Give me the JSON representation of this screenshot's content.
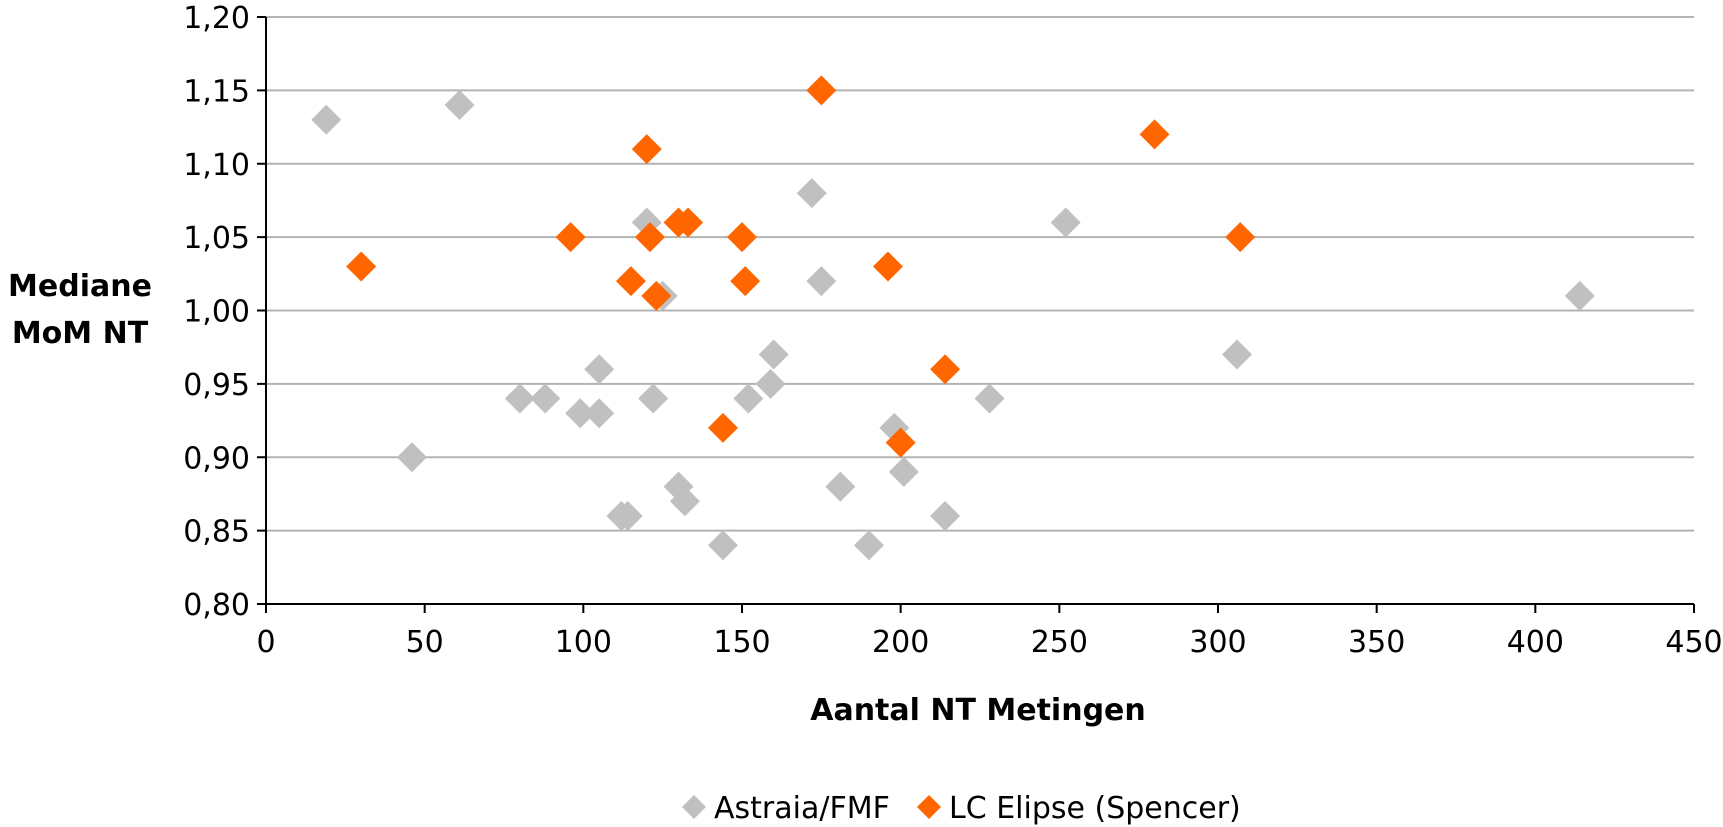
{
  "chart_data": {
    "type": "scatter",
    "xlabel": "Aantal NT Metingen",
    "ylabel_lines": [
      "Mediane",
      "MoM NT"
    ],
    "xlim": [
      0,
      450
    ],
    "ylim": [
      0.8,
      1.2
    ],
    "x_ticks": [
      0,
      50,
      100,
      150,
      200,
      250,
      300,
      350,
      400,
      450
    ],
    "x_tick_labels": [
      "0",
      "50",
      "100",
      "150",
      "200",
      "250",
      "300",
      "350",
      "400",
      "450"
    ],
    "y_ticks": [
      0.8,
      0.85,
      0.9,
      0.95,
      1.0,
      1.05,
      1.1,
      1.15,
      1.2
    ],
    "y_tick_labels": [
      "0,80",
      "0,85",
      "0,90",
      "0,95",
      "1,00",
      "1,05",
      "1,10",
      "1,15",
      "1,20"
    ],
    "grid": "horizontal",
    "legend_position": "bottom",
    "series": [
      {
        "name": "Astraia/FMF",
        "color": "#c0c0c0",
        "marker": "diamond",
        "points": [
          [
            19,
            1.13
          ],
          [
            46,
            0.9
          ],
          [
            61,
            1.14
          ],
          [
            80,
            0.94
          ],
          [
            88,
            0.94
          ],
          [
            99,
            0.93
          ],
          [
            105,
            0.96
          ],
          [
            105,
            0.93
          ],
          [
            112,
            0.86
          ],
          [
            114,
            0.86
          ],
          [
            120,
            1.06
          ],
          [
            121,
            1.05
          ],
          [
            122,
            0.94
          ],
          [
            125,
            1.01
          ],
          [
            130,
            0.88
          ],
          [
            132,
            0.87
          ],
          [
            144,
            0.84
          ],
          [
            152,
            0.94
          ],
          [
            159,
            0.95
          ],
          [
            160,
            0.97
          ],
          [
            172,
            1.08
          ],
          [
            175,
            1.02
          ],
          [
            181,
            0.88
          ],
          [
            190,
            0.84
          ],
          [
            198,
            0.92
          ],
          [
            201,
            0.89
          ],
          [
            214,
            0.86
          ],
          [
            228,
            0.94
          ],
          [
            252,
            1.06
          ],
          [
            306,
            0.97
          ],
          [
            414,
            1.01
          ]
        ]
      },
      {
        "name": "LC Elipse (Spencer)",
        "color": "#ff6600",
        "marker": "diamond",
        "points": [
          [
            30,
            1.03
          ],
          [
            96,
            1.05
          ],
          [
            115,
            1.02
          ],
          [
            120,
            1.11
          ],
          [
            121,
            1.05
          ],
          [
            123,
            1.01
          ],
          [
            130,
            1.06
          ],
          [
            133,
            1.06
          ],
          [
            144,
            0.92
          ],
          [
            150,
            1.05
          ],
          [
            151,
            1.02
          ],
          [
            175,
            1.15
          ],
          [
            196,
            1.03
          ],
          [
            200,
            0.91
          ],
          [
            214,
            0.96
          ],
          [
            280,
            1.12
          ],
          [
            307,
            1.05
          ]
        ]
      }
    ]
  }
}
